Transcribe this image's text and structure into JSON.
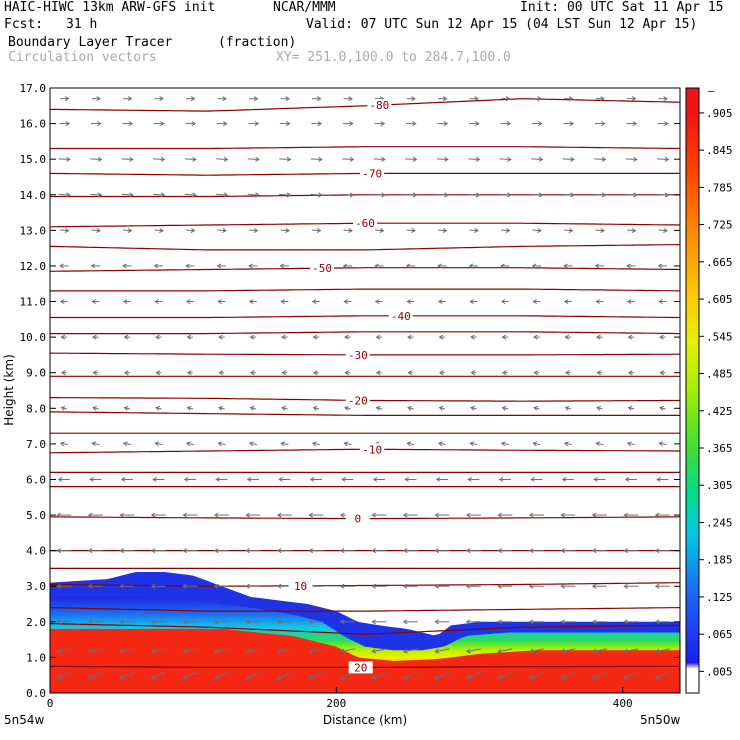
{
  "header": {
    "model": "HAIC-HIWC 13km ARW-GFS init",
    "org": "NCAR/MMM",
    "init": "Init: 00 UTC Sat 11 Apr 15",
    "fcst_label": "Fcst:",
    "fcst_value": "31 h",
    "valid": "Valid: 07 UTC Sun 12 Apr 15 (04 LST Sun 12 Apr 15)",
    "field": "Boundary Layer Tracer",
    "units": "(fraction)",
    "overlay": "Circulation vectors",
    "xy": "XY= 251.0,100.0 to 284.7,100.0"
  },
  "colors": {
    "contour": "#8b0000",
    "vector": "#6e6e6e"
  },
  "chart_data": {
    "type": "heatmap",
    "xlabel": "Distance (km)",
    "ylabel": "Height (km)",
    "xlim": [
      0,
      440
    ],
    "ylim": [
      0,
      17
    ],
    "x_ticks": [
      "0",
      "200",
      "400"
    ],
    "x_tick_values": [
      0,
      200,
      400
    ],
    "y_ticks": [
      "0.0",
      "1.0",
      "2.0",
      "3.0",
      "4.0",
      "5.0",
      "6.0",
      "7.0",
      "8.0",
      "9.0",
      "10.0",
      "11.0",
      "12.0",
      "13.0",
      "14.0",
      "15.0",
      "16.0",
      "17.0"
    ],
    "endpoints": {
      "left": "5n54w",
      "right": "5n50w"
    },
    "colorbar": {
      "labels": [
        ".005",
        ".065",
        ".125",
        ".185",
        ".245",
        ".305",
        ".365",
        ".425",
        ".485",
        ".545",
        ".605",
        ".665",
        ".725",
        ".785",
        ".845",
        ".905"
      ],
      "top_label": "–"
    },
    "tracer_top": {
      "x": [
        0,
        40,
        60,
        80,
        100,
        120,
        140,
        160,
        180,
        200,
        215,
        230,
        250,
        270,
        280,
        300,
        330,
        360,
        400,
        440
      ],
      "z": [
        3.1,
        3.2,
        3.4,
        3.4,
        3.3,
        3.0,
        2.7,
        2.6,
        2.5,
        2.3,
        2.0,
        1.9,
        1.8,
        1.6,
        1.9,
        2.0,
        2.0,
        2.0,
        2.0,
        2.0
      ]
    },
    "tracer_green_top": {
      "x": [
        0,
        50,
        100,
        140,
        170,
        190,
        205,
        220,
        240,
        260,
        275,
        290,
        320,
        360,
        400,
        440
      ],
      "z": [
        2.7,
        2.7,
        2.6,
        2.4,
        2.2,
        2.0,
        1.6,
        1.3,
        1.2,
        1.2,
        1.3,
        1.6,
        1.7,
        1.7,
        1.7,
        1.7
      ]
    },
    "tracer_orange_top": {
      "x": [
        0,
        60,
        120,
        170,
        200,
        215,
        240,
        270,
        300,
        340,
        400,
        440
      ],
      "z": [
        1.8,
        1.8,
        1.8,
        1.6,
        1.3,
        1.0,
        0.9,
        0.95,
        1.1,
        1.2,
        1.2,
        1.2
      ]
    },
    "temperature_contours": [
      {
        "label": "20",
        "z": [
          0.75,
          0.72,
          0.72,
          0.74,
          0.75
        ],
        "label_x": 217
      },
      {
        "label": "10",
        "z": [
          3.05,
          3.0,
          3.02,
          3.05,
          3.1
        ],
        "label_x": 175
      },
      {
        "label": "0",
        "z": [
          4.95,
          4.92,
          4.9,
          4.92,
          4.95
        ],
        "label_x": 215
      },
      {
        "label": "-10",
        "z": [
          6.75,
          6.8,
          6.85,
          6.82,
          6.8
        ],
        "label_x": 225
      },
      {
        "label": "-20",
        "z": [
          8.3,
          8.28,
          8.22,
          8.2,
          8.22
        ],
        "label_x": 215
      },
      {
        "label": "-30",
        "z": [
          9.55,
          9.52,
          9.5,
          9.5,
          9.52
        ],
        "label_x": 215
      },
      {
        "label": "-40",
        "z": [
          10.55,
          10.55,
          10.6,
          10.6,
          10.55
        ],
        "label_x": 245
      },
      {
        "label": "-50",
        "z": [
          11.85,
          11.9,
          11.95,
          11.95,
          11.9
        ],
        "label_x": 190
      },
      {
        "label": "-60",
        "z": [
          13.1,
          13.15,
          13.2,
          13.2,
          13.15
        ],
        "label_x": 220
      },
      {
        "label": "-70",
        "z": [
          14.6,
          14.55,
          14.6,
          14.6,
          14.6
        ],
        "label_x": 225
      },
      {
        "label": "-80",
        "z": [
          16.4,
          16.35,
          16.5,
          16.7,
          16.6
        ],
        "label_x": 230
      }
    ],
    "extra_contours": [
      {
        "z": [
          15.3,
          15.3,
          15.35,
          15.35,
          15.3
        ]
      },
      {
        "z": [
          13.95,
          13.95,
          14.0,
          14.0,
          14.0
        ]
      },
      {
        "z": [
          12.55,
          12.45,
          12.45,
          12.55,
          12.6
        ]
      },
      {
        "z": [
          11.3,
          11.3,
          11.35,
          11.35,
          11.3
        ]
      },
      {
        "z": [
          10.1,
          10.1,
          10.15,
          10.15,
          10.1
        ]
      },
      {
        "z": [
          8.9,
          8.9,
          8.9,
          8.9,
          8.9
        ]
      },
      {
        "z": [
          7.9,
          7.85,
          7.8,
          7.8,
          7.8
        ]
      },
      {
        "z": [
          7.3,
          7.3,
          7.3,
          7.3,
          7.3
        ]
      },
      {
        "z": [
          6.2,
          6.2,
          6.2,
          6.2,
          6.2
        ]
      },
      {
        "z": [
          5.8,
          5.8,
          5.8,
          5.8,
          5.8
        ]
      },
      {
        "z": [
          4.0,
          4.0,
          4.0,
          4.0,
          4.0
        ]
      },
      {
        "z": [
          3.5,
          3.5,
          3.5,
          3.5,
          3.5
        ]
      },
      {
        "z": [
          2.4,
          2.3,
          2.3,
          2.35,
          2.4
        ]
      },
      {
        "z": [
          1.95,
          1.85,
          1.65,
          1.85,
          1.9
        ]
      }
    ],
    "contour_x": [
      0,
      110,
      220,
      330,
      440
    ],
    "wind_by_level": [
      {
        "z": 0.5,
        "u": -1,
        "w": -0.4
      },
      {
        "z": 1.2,
        "u": -1,
        "w": -0.2
      },
      {
        "z": 2.0,
        "u": -1,
        "w": 0.0
      },
      {
        "z": 3.0,
        "u": -1,
        "w": 0.0
      },
      {
        "z": 4.0,
        "u": -1,
        "w": 0.0
      },
      {
        "z": 5.0,
        "u": -1,
        "w": 0.0
      },
      {
        "z": 6.0,
        "u": -0.8,
        "w": 0.0
      },
      {
        "z": 7.0,
        "u": -0.5,
        "w": 0.1
      },
      {
        "z": 8.0,
        "u": -0.4,
        "w": 0.1
      },
      {
        "z": 9.0,
        "u": -0.35,
        "w": 0.0
      },
      {
        "z": 10.0,
        "u": -0.4,
        "w": 0.0
      },
      {
        "z": 11.0,
        "u": -0.5,
        "w": 0.0
      },
      {
        "z": 12.0,
        "u": -0.6,
        "w": 0.0
      },
      {
        "z": 13.0,
        "u": 0.6,
        "w": -0.05
      },
      {
        "z": 14.0,
        "u": 0.8,
        "w": -0.05
      },
      {
        "z": 15.0,
        "u": 0.8,
        "w": -0.05
      },
      {
        "z": 16.0,
        "u": 0.7,
        "w": 0.0
      },
      {
        "z": 16.7,
        "u": 0.6,
        "w": 0.0
      }
    ]
  }
}
